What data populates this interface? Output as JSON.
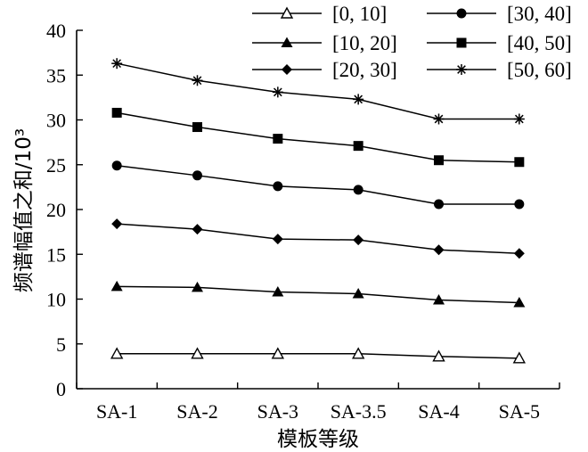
{
  "chart_data": {
    "type": "line",
    "xlabel": "模板等级",
    "ylabel": "频谱幅值之和/10³",
    "categories": [
      "SA-1",
      "SA-2",
      "SA-3",
      "SA-3.5",
      "SA-4",
      "SA-5"
    ],
    "ylim": [
      0,
      40
    ],
    "yticks": [
      0,
      5,
      10,
      15,
      20,
      25,
      30,
      35,
      40
    ],
    "grid": false,
    "legend_position": "top-right",
    "series": [
      {
        "name": "[0, 10]",
        "marker": "triangle-open",
        "values": [
          3.9,
          3.9,
          3.9,
          3.9,
          3.6,
          3.4
        ]
      },
      {
        "name": "[10, 20]",
        "marker": "triangle",
        "values": [
          11.4,
          11.3,
          10.8,
          10.6,
          9.9,
          9.6
        ]
      },
      {
        "name": "[20, 30]",
        "marker": "diamond",
        "values": [
          18.4,
          17.8,
          16.7,
          16.6,
          15.5,
          15.1
        ]
      },
      {
        "name": "[30, 40]",
        "marker": "circle",
        "values": [
          24.9,
          23.8,
          22.6,
          22.2,
          20.6,
          20.6
        ]
      },
      {
        "name": "[40, 50]",
        "marker": "square",
        "values": [
          30.8,
          29.2,
          27.9,
          27.1,
          25.5,
          25.3
        ]
      },
      {
        "name": "[50, 60]",
        "marker": "star",
        "values": [
          36.3,
          34.4,
          33.1,
          32.3,
          30.1,
          30.1
        ]
      }
    ]
  }
}
